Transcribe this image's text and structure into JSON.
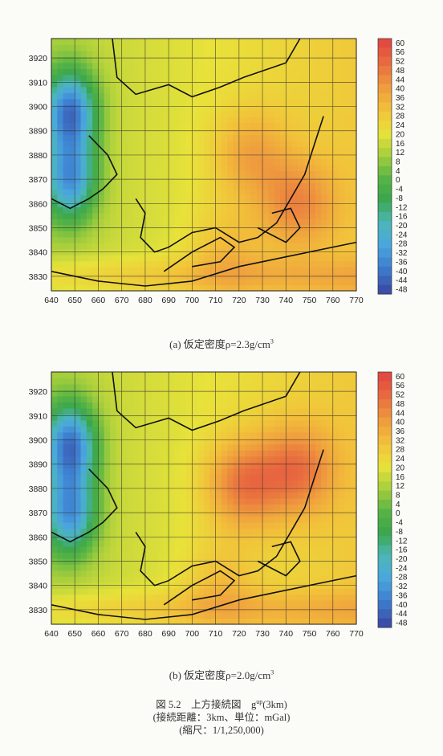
{
  "chart_data": [
    {
      "type": "heatmap",
      "panel_caption": "(a)  仮定密度ρ=2.3g/cm",
      "panel_caption_sup": "3",
      "x_ticks": [
        640,
        650,
        660,
        670,
        680,
        690,
        700,
        710,
        720,
        730,
        740,
        750,
        760,
        770
      ],
      "y_ticks": [
        3830,
        3840,
        3850,
        3860,
        3870,
        3880,
        3890,
        3900,
        3910,
        3920
      ],
      "xlim": [
        640,
        770
      ],
      "ylim": [
        3824,
        3928
      ],
      "grid": true,
      "colorbar_ticks": [
        60,
        56,
        52,
        48,
        44,
        40,
        36,
        32,
        28,
        24,
        20,
        16,
        12,
        8,
        4,
        0,
        -4,
        -8,
        -12,
        -16,
        -20,
        -24,
        -28,
        -32,
        -36,
        -40,
        -44,
        -48
      ],
      "colorbar_range": [
        -48,
        60
      ],
      "legend_position": "right",
      "highs": [
        [
          725,
          3880,
          36
        ],
        [
          745,
          3860,
          40
        ],
        [
          715,
          3840,
          30
        ]
      ],
      "lows": [
        [
          648,
          3898,
          -44
        ],
        [
          648,
          3870,
          -36
        ]
      ]
    },
    {
      "type": "heatmap",
      "panel_caption": "(b)  仮定密度ρ=2.0g/cm",
      "panel_caption_sup": "3",
      "x_ticks": [
        640,
        650,
        660,
        670,
        680,
        690,
        700,
        710,
        720,
        730,
        740,
        750,
        760,
        770
      ],
      "y_ticks": [
        3830,
        3840,
        3850,
        3860,
        3870,
        3880,
        3890,
        3900,
        3910,
        3920
      ],
      "xlim": [
        640,
        770
      ],
      "ylim": [
        3824,
        3928
      ],
      "grid": true,
      "colorbar_ticks": [
        60,
        56,
        52,
        48,
        44,
        40,
        36,
        32,
        28,
        24,
        20,
        16,
        12,
        8,
        4,
        0,
        -4,
        -8,
        -12,
        -16,
        -20,
        -24,
        -28,
        -32,
        -36,
        -40,
        -44,
        -48
      ],
      "colorbar_range": [
        -48,
        60
      ],
      "legend_position": "right",
      "highs": [
        [
          722,
          3882,
          46
        ],
        [
          745,
          3888,
          44
        ],
        [
          712,
          3840,
          30
        ]
      ],
      "lows": [
        [
          648,
          3898,
          -44
        ],
        [
          648,
          3870,
          -36
        ]
      ]
    }
  ],
  "figure_caption": {
    "line1": "図 5.2　上方接続図　g",
    "line1_sup": "up",
    "line1_tail": "(3km)",
    "line2": "(接続距離：3km、単位：mGal)",
    "line3": "(縮尺：1/1,250,000)"
  },
  "colors": {
    "stops": [
      "#3a4fa8",
      "#3e7fd0",
      "#4aa6dd",
      "#4bb7b6",
      "#3aa64d",
      "#58b544",
      "#a8cf3c",
      "#e8e23a",
      "#f2c13a",
      "#ef9d3e",
      "#e9703f",
      "#e24a42"
    ]
  }
}
